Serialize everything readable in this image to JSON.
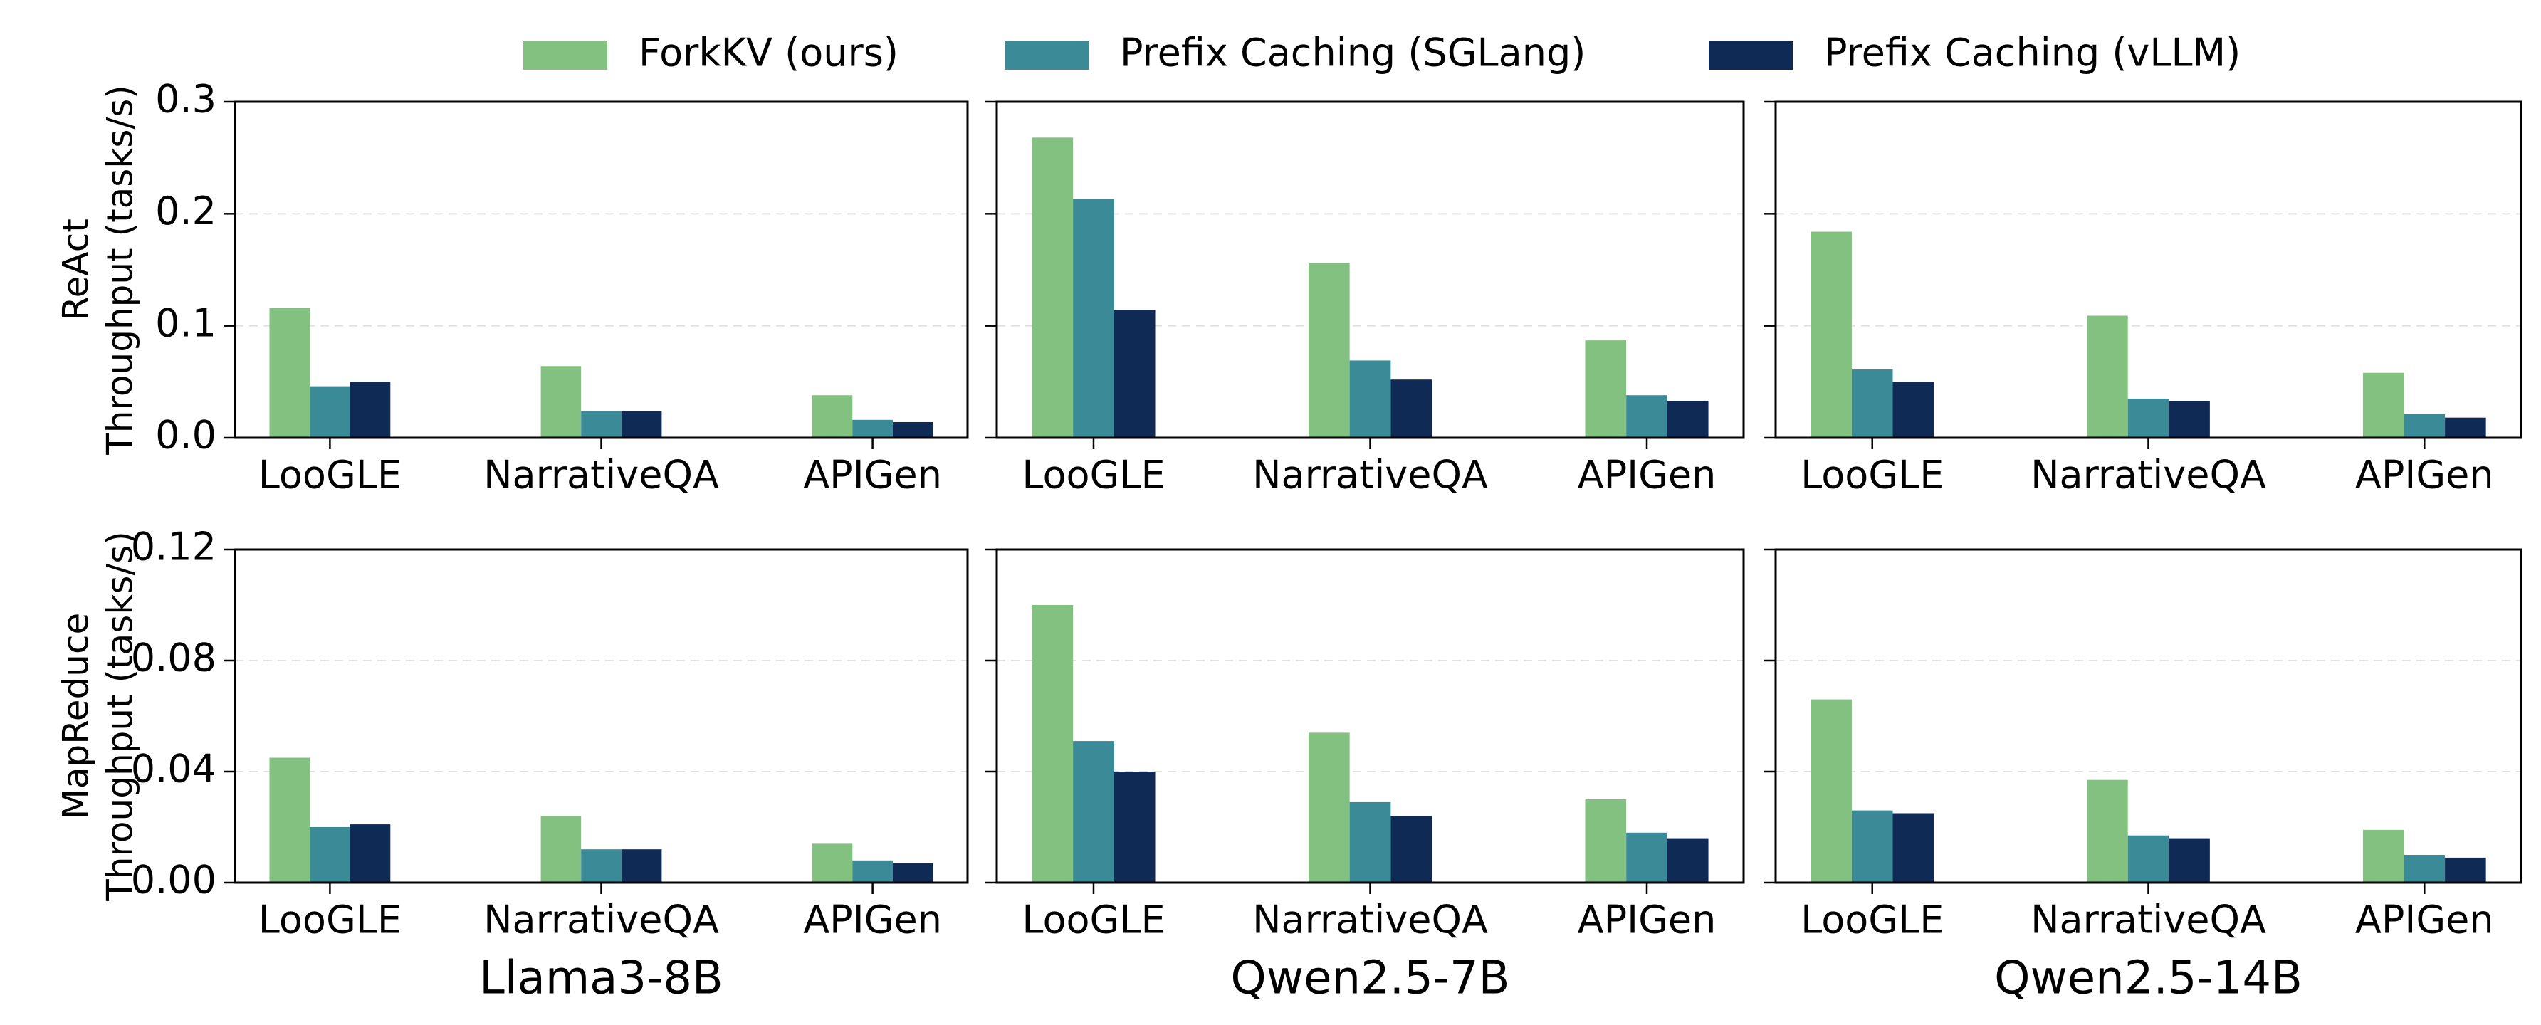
{
  "chart_data": [
    {
      "type": "bar",
      "ylabel": [
        "ReAct",
        "Throughput (tasks/s)"
      ],
      "categories": [
        "LooGLE",
        "NarrativeQA",
        "APIGen"
      ],
      "series": [
        {
          "name": "ForkKV (ours)",
          "color": "#82c17f",
          "values": [
            0.116,
            0.064,
            0.038
          ]
        },
        {
          "name": "Prefix Caching (SGLang)",
          "color": "#3a8a98",
          "values": [
            0.046,
            0.024,
            0.016
          ]
        },
        {
          "name": "Prefix Caching (vLLM)",
          "color": "#0f2a55",
          "values": [
            0.05,
            0.024,
            0.014
          ]
        }
      ],
      "ylim": [
        0,
        0.3
      ],
      "yticks": [
        {
          "value": 0,
          "label": "0.0"
        },
        0.1,
        0.2,
        0.3
      ],
      "grid": true
    },
    {
      "type": "bar",
      "categories": [
        "LooGLE",
        "NarrativeQA",
        "APIGen"
      ],
      "series": [
        {
          "name": "ForkKV (ours)",
          "color": "#82c17f",
          "values": [
            0.268,
            0.156,
            0.087
          ]
        },
        {
          "name": "Prefix Caching (SGLang)",
          "color": "#3a8a98",
          "values": [
            0.213,
            0.069,
            0.038
          ]
        },
        {
          "name": "Prefix Caching (vLLM)",
          "color": "#0f2a55",
          "values": [
            0.114,
            0.052,
            0.033
          ]
        }
      ],
      "ylim": [
        0,
        0.3
      ],
      "grid": true
    },
    {
      "type": "bar",
      "categories": [
        "LooGLE",
        "NarrativeQA",
        "APIGen"
      ],
      "series": [
        {
          "name": "ForkKV (ours)",
          "color": "#82c17f",
          "values": [
            0.184,
            0.109,
            0.058
          ]
        },
        {
          "name": "Prefix Caching (SGLang)",
          "color": "#3a8a98",
          "values": [
            0.061,
            0.035,
            0.021
          ]
        },
        {
          "name": "Prefix Caching (vLLM)",
          "color": "#0f2a55",
          "values": [
            0.05,
            0.033,
            0.018
          ]
        }
      ],
      "ylim": [
        0,
        0.3
      ],
      "grid": true
    },
    {
      "type": "bar",
      "ylabel": [
        "MapReduce",
        "Throughput (tasks/s)"
      ],
      "xlabel": "Llama3-8B",
      "categories": [
        "LooGLE",
        "NarrativeQA",
        "APIGen"
      ],
      "series": [
        {
          "name": "ForkKV (ours)",
          "color": "#82c17f",
          "values": [
            0.045,
            0.024,
            0.014
          ]
        },
        {
          "name": "Prefix Caching (SGLang)",
          "color": "#3a8a98",
          "values": [
            0.02,
            0.012,
            0.008
          ]
        },
        {
          "name": "Prefix Caching (vLLM)",
          "color": "#0f2a55",
          "values": [
            0.021,
            0.012,
            0.007
          ]
        }
      ],
      "ylim": [
        0,
        0.12
      ],
      "yticks": [
        {
          "value": 0,
          "label": "0.00"
        },
        {
          "value": 0.04,
          "label": "0.04"
        },
        {
          "value": 0.08,
          "label": "0.08"
        },
        {
          "value": 0.12,
          "label": "0.12"
        }
      ],
      "grid": true
    },
    {
      "type": "bar",
      "xlabel": "Qwen2.5-7B",
      "categories": [
        "LooGLE",
        "NarrativeQA",
        "APIGen"
      ],
      "series": [
        {
          "name": "ForkKV (ours)",
          "color": "#82c17f",
          "values": [
            0.1,
            0.054,
            0.03
          ]
        },
        {
          "name": "Prefix Caching (SGLang)",
          "color": "#3a8a98",
          "values": [
            0.051,
            0.029,
            0.018
          ]
        },
        {
          "name": "Prefix Caching (vLLM)",
          "color": "#0f2a55",
          "values": [
            0.04,
            0.024,
            0.016
          ]
        }
      ],
      "ylim": [
        0,
        0.12
      ],
      "grid": true
    },
    {
      "type": "bar",
      "xlabel": "Qwen2.5-14B",
      "categories": [
        "LooGLE",
        "NarrativeQA",
        "APIGen"
      ],
      "series": [
        {
          "name": "ForkKV (ours)",
          "color": "#82c17f",
          "values": [
            0.066,
            0.037,
            0.019
          ]
        },
        {
          "name": "Prefix Caching (SGLang)",
          "color": "#3a8a98",
          "values": [
            0.026,
            0.017,
            0.01
          ]
        },
        {
          "name": "Prefix Caching (vLLM)",
          "color": "#0f2a55",
          "values": [
            0.025,
            0.016,
            0.009
          ]
        }
      ],
      "ylim": [
        0,
        0.12
      ],
      "grid": true
    }
  ]
}
